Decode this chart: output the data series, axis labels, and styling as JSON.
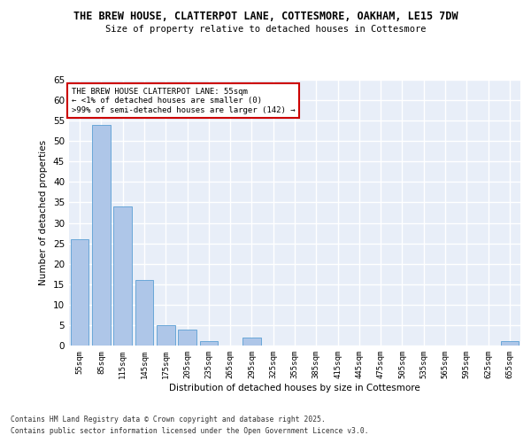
{
  "title_line1": "THE BREW HOUSE, CLATTERPOT LANE, COTTESMORE, OAKHAM, LE15 7DW",
  "title_line2": "Size of property relative to detached houses in Cottesmore",
  "xlabel": "Distribution of detached houses by size in Cottesmore",
  "ylabel": "Number of detached properties",
  "bar_color": "#aec6e8",
  "bar_edge_color": "#5a9fd4",
  "background_color": "#e8eef8",
  "grid_color": "#ffffff",
  "categories": [
    "55sqm",
    "85sqm",
    "115sqm",
    "145sqm",
    "175sqm",
    "205sqm",
    "235sqm",
    "265sqm",
    "295sqm",
    "325sqm",
    "355sqm",
    "385sqm",
    "415sqm",
    "445sqm",
    "475sqm",
    "505sqm",
    "535sqm",
    "565sqm",
    "595sqm",
    "625sqm",
    "655sqm"
  ],
  "values": [
    26,
    54,
    34,
    16,
    5,
    4,
    1,
    0,
    2,
    0,
    0,
    0,
    0,
    0,
    0,
    0,
    0,
    0,
    0,
    0,
    1
  ],
  "ylim": [
    0,
    65
  ],
  "yticks": [
    0,
    5,
    10,
    15,
    20,
    25,
    30,
    35,
    40,
    45,
    50,
    55,
    60,
    65
  ],
  "annotation_text": "THE BREW HOUSE CLATTERPOT LANE: 55sqm\n← <1% of detached houses are smaller (0)\n>99% of semi-detached houses are larger (142) →",
  "annotation_color": "#cc0000",
  "footnote_line1": "Contains HM Land Registry data © Crown copyright and database right 2025.",
  "footnote_line2": "Contains public sector information licensed under the Open Government Licence v3.0."
}
